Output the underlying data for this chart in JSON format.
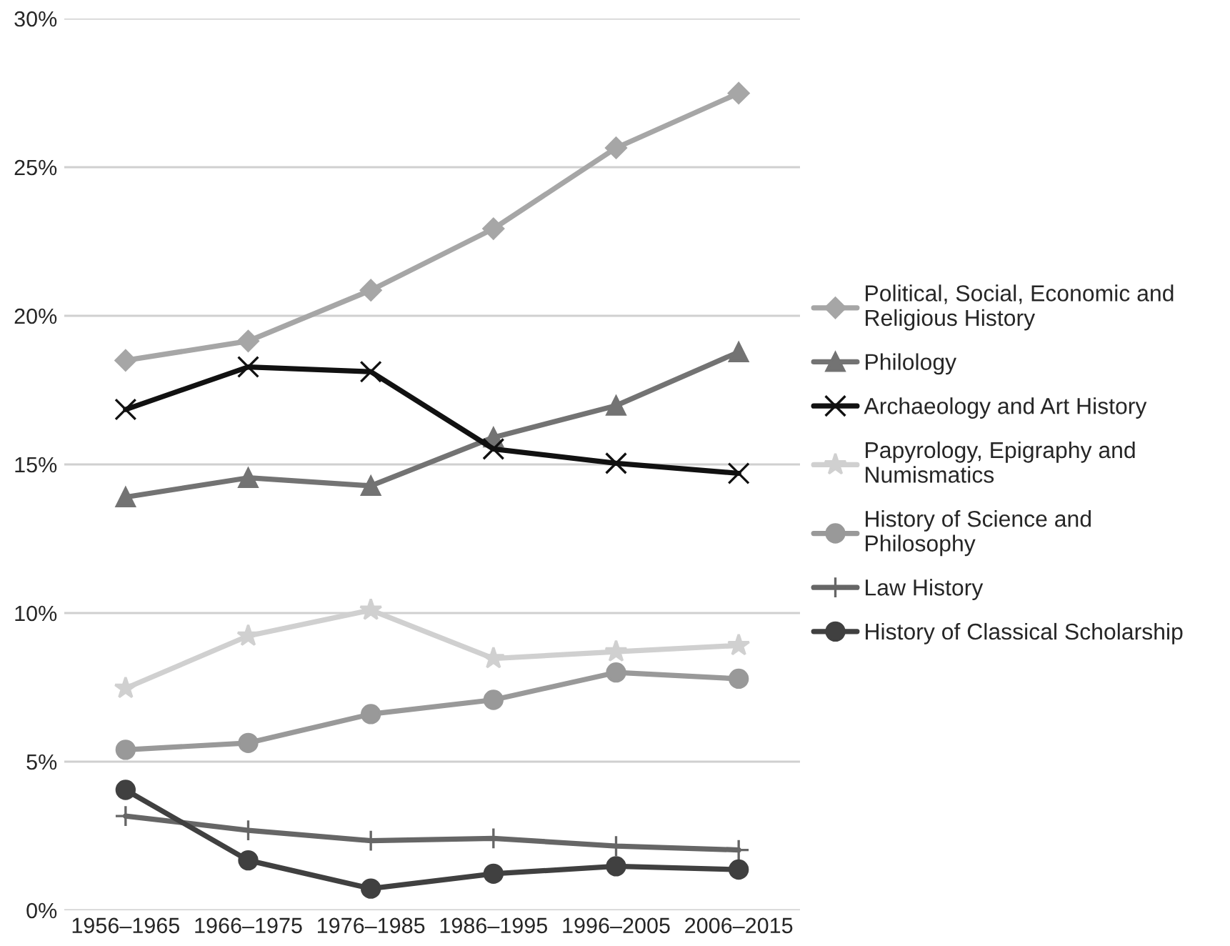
{
  "chart_data": {
    "type": "line",
    "categories": [
      "1956–1965",
      "1966–1975",
      "1976–1985",
      "1986–1995",
      "1996–2005",
      "2006–2015"
    ],
    "series": [
      {
        "name": "Political, Social, Economic and Religious History",
        "color": "#a6a6a6",
        "marker": "diamond",
        "values": [
          18.5,
          19.15,
          20.86,
          22.93,
          25.65,
          27.49
        ]
      },
      {
        "name": "Philology",
        "color": "#737373",
        "marker": "triangle",
        "values": [
          13.9,
          14.55,
          14.28,
          15.91,
          16.98,
          18.78
        ]
      },
      {
        "name": "Archaeology and Art History",
        "color": "#111111",
        "marker": "cross",
        "values": [
          16.85,
          18.28,
          18.12,
          15.52,
          15.04,
          14.7
        ]
      },
      {
        "name": "Papyrology, Epigraphy and Numismatics",
        "color": "#d0d0d0",
        "marker": "star",
        "values": [
          7.47,
          9.23,
          10.1,
          8.47,
          8.7,
          8.91
        ]
      },
      {
        "name": "History of Science and Philosophy",
        "color": "#999999",
        "marker": "circle",
        "values": [
          5.4,
          5.63,
          6.6,
          7.08,
          8.0,
          7.79
        ]
      },
      {
        "name": "Law History",
        "color": "#666666",
        "marker": "plus",
        "values": [
          3.17,
          2.69,
          2.34,
          2.42,
          2.16,
          2.03
        ]
      },
      {
        "name": "History of Classical Scholarship",
        "color": "#404040",
        "marker": "circle",
        "values": [
          4.05,
          1.68,
          0.73,
          1.23,
          1.48,
          1.37
        ]
      }
    ],
    "ylim": [
      0,
      30
    ],
    "yticks": [
      {
        "value": 0,
        "label": "0%"
      },
      {
        "value": 5,
        "label": "5%"
      },
      {
        "value": 10,
        "label": "10%"
      },
      {
        "value": 15,
        "label": "15%"
      },
      {
        "value": 20,
        "label": "20%"
      },
      {
        "value": 25,
        "label": "25%"
      },
      {
        "value": 30,
        "label": "30%"
      }
    ],
    "grid": "y",
    "legend": "right",
    "line_style": "solid"
  }
}
